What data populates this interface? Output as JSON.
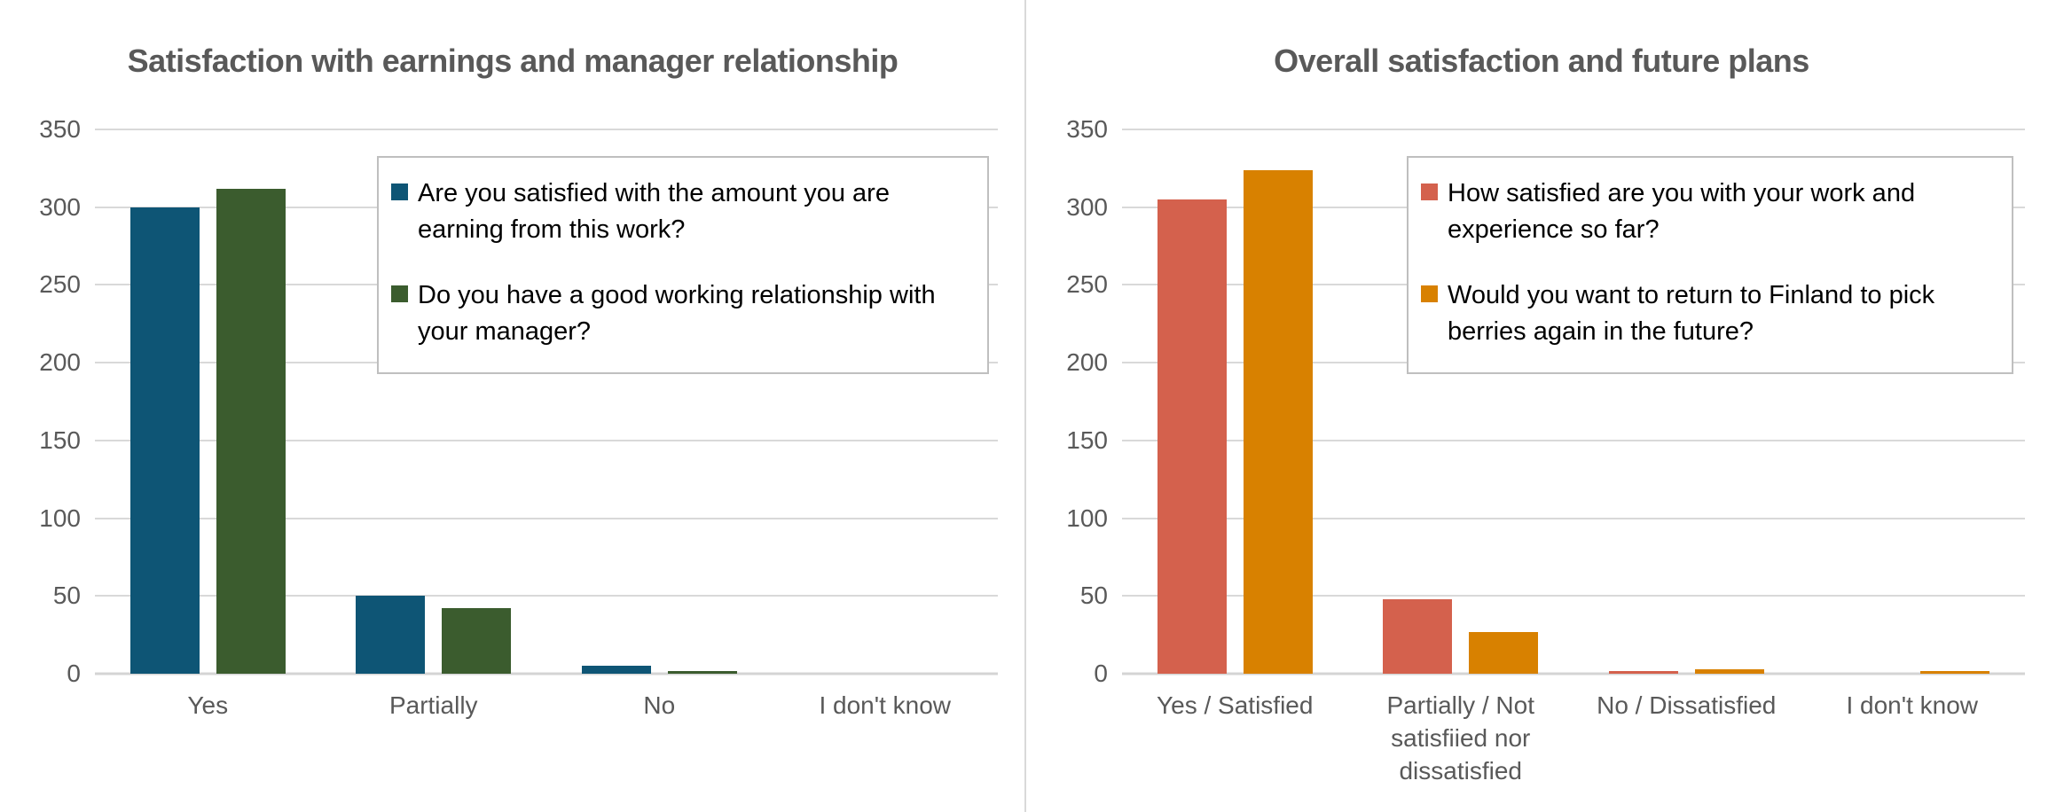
{
  "page": {
    "background": "#ffffff",
    "divider_color": "#d9d9d9"
  },
  "colors": {
    "title_text": "#595959",
    "axis_text": "#595959",
    "gridline": "#d9d9d9",
    "legend_border": "#bfbfbf",
    "legend_text": "#000000",
    "series_blue": "#0e5575",
    "series_green": "#3b5c2e",
    "series_red": "#d4614d",
    "series_orange": "#d88100"
  },
  "chart_data": [
    {
      "type": "bar",
      "title": "Satisfaction with earnings and manager relationship",
      "categories": [
        "Yes",
        "Partially",
        "No",
        "I don't know"
      ],
      "series": [
        {
          "name": "Are you satisfied with the amount you are earning from this work?",
          "color": "#0e5575",
          "values": [
            300,
            50,
            5,
            0
          ]
        },
        {
          "name": "Do you have a good working relationship with your manager?",
          "color": "#3b5c2e",
          "values": [
            312,
            42,
            2,
            0
          ]
        }
      ],
      "xlabel": "",
      "ylabel": "",
      "ylim": [
        0,
        350
      ],
      "yticks": [
        350,
        300,
        250,
        200,
        150,
        100,
        50,
        0
      ],
      "grid": true,
      "legend_position": "upper-right-inside"
    },
    {
      "type": "bar",
      "title": "Overall satisfaction and future plans",
      "categories": [
        "Yes / Satisfied",
        "Partially / Not satisfiied nor dissatisfied",
        "No / Dissatisfied",
        "I don't know"
      ],
      "series": [
        {
          "name": "How satisfied are you with your work and experience so far?",
          "color": "#d4614d",
          "values": [
            305,
            48,
            2,
            0
          ]
        },
        {
          "name": "Would you want to return to Finland to pick berries again in the future?",
          "color": "#d88100",
          "values": [
            324,
            27,
            3,
            2
          ]
        }
      ],
      "xlabel": "",
      "ylabel": "",
      "ylim": [
        0,
        350
      ],
      "yticks": [
        350,
        300,
        250,
        200,
        150,
        100,
        50,
        0
      ],
      "grid": true,
      "legend_position": "upper-right-inside"
    }
  ]
}
